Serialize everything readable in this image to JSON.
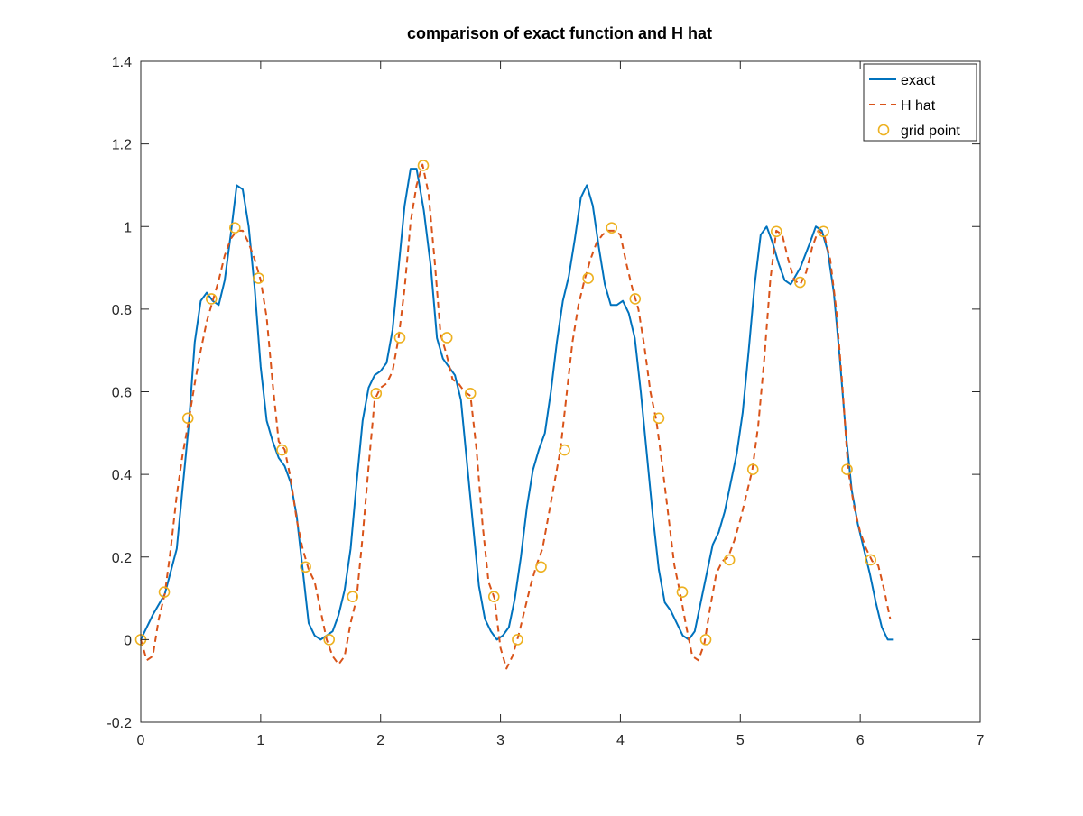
{
  "chart_data": {
    "type": "line",
    "title": "comparison of exact function and H hat",
    "xlabel": "",
    "ylabel": "",
    "xlim": [
      0,
      7
    ],
    "ylim": [
      -0.2,
      1.4
    ],
    "xticks": [
      0,
      1,
      2,
      3,
      4,
      5,
      6,
      7
    ],
    "yticks": [
      -0.2,
      0,
      0.2,
      0.4,
      0.6,
      0.8,
      1,
      1.2,
      1.4
    ],
    "xtick_labels": [
      "0",
      "1",
      "2",
      "3",
      "4",
      "5",
      "6",
      "7"
    ],
    "ytick_labels": [
      "-0.2",
      "0",
      "0.2",
      "0.4",
      "0.6",
      "0.8",
      "1",
      "1.2",
      "1.4"
    ],
    "grid": false,
    "legend_position": "top-right",
    "series": [
      {
        "name": "exact",
        "style": "solid",
        "color": "#0072BD",
        "x": [
          0,
          0.1,
          0.2,
          0.3,
          0.4,
          0.45,
          0.5,
          0.55,
          0.6,
          0.65,
          0.7,
          0.75,
          0.8,
          0.85,
          0.9,
          0.95,
          1.0,
          1.05,
          1.1,
          1.15,
          1.2,
          1.25,
          1.3,
          1.35,
          1.4,
          1.45,
          1.5,
          1.55,
          1.6,
          1.65,
          1.7,
          1.75,
          1.8,
          1.85,
          1.9,
          1.95,
          2.0,
          2.05,
          2.1,
          2.15,
          2.2,
          2.25,
          2.3,
          2.36,
          2.42,
          2.47,
          2.52,
          2.57,
          2.62,
          2.67,
          2.72,
          2.77,
          2.82,
          2.87,
          2.92,
          2.97,
          3.02,
          3.07,
          3.12,
          3.17,
          3.22,
          3.27,
          3.32,
          3.37,
          3.42,
          3.47,
          3.52,
          3.57,
          3.62,
          3.67,
          3.72,
          3.77,
          3.82,
          3.87,
          3.92,
          3.97,
          4.02,
          4.07,
          4.12,
          4.17,
          4.22,
          4.27,
          4.32,
          4.37,
          4.42,
          4.47,
          4.52,
          4.57,
          4.62,
          4.67,
          4.72,
          4.77,
          4.82,
          4.87,
          4.92,
          4.97,
          5.02,
          5.07,
          5.12,
          5.17,
          5.22,
          5.27,
          5.32,
          5.37,
          5.42,
          5.5,
          5.58,
          5.63,
          5.68,
          5.73,
          5.78,
          5.83,
          5.88,
          5.93,
          5.98,
          6.03,
          6.08,
          6.13,
          6.18,
          6.23,
          6.28
        ],
        "y": [
          0,
          0.06,
          0.11,
          0.22,
          0.52,
          0.72,
          0.82,
          0.84,
          0.82,
          0.81,
          0.87,
          0.98,
          1.1,
          1.09,
          1.0,
          0.85,
          0.66,
          0.53,
          0.48,
          0.44,
          0.42,
          0.38,
          0.3,
          0.17,
          0.04,
          0.01,
          0.0,
          0.01,
          0.02,
          0.06,
          0.12,
          0.22,
          0.38,
          0.53,
          0.61,
          0.64,
          0.65,
          0.67,
          0.75,
          0.9,
          1.05,
          1.14,
          1.14,
          1.04,
          0.9,
          0.73,
          0.68,
          0.66,
          0.64,
          0.58,
          0.43,
          0.28,
          0.13,
          0.05,
          0.02,
          0.0,
          0.01,
          0.03,
          0.1,
          0.2,
          0.32,
          0.41,
          0.46,
          0.5,
          0.6,
          0.72,
          0.82,
          0.88,
          0.97,
          1.07,
          1.1,
          1.05,
          0.95,
          0.86,
          0.81,
          0.81,
          0.82,
          0.79,
          0.73,
          0.6,
          0.45,
          0.3,
          0.17,
          0.09,
          0.07,
          0.04,
          0.01,
          0.0,
          0.02,
          0.09,
          0.16,
          0.23,
          0.26,
          0.31,
          0.38,
          0.45,
          0.55,
          0.7,
          0.86,
          0.98,
          1.0,
          0.96,
          0.91,
          0.87,
          0.86,
          0.9,
          0.96,
          1.0,
          0.99,
          0.94,
          0.84,
          0.68,
          0.5,
          0.36,
          0.28,
          0.22,
          0.16,
          0.09,
          0.03,
          0.0,
          0.0
        ]
      },
      {
        "name": "H hat",
        "style": "dashed",
        "color": "#D95319",
        "x": [
          0,
          0.05,
          0.1,
          0.15,
          0.2,
          0.25,
          0.3,
          0.35,
          0.4,
          0.45,
          0.5,
          0.55,
          0.6,
          0.65,
          0.7,
          0.75,
          0.8,
          0.85,
          0.9,
          0.95,
          1.0,
          1.05,
          1.1,
          1.15,
          1.2,
          1.25,
          1.3,
          1.35,
          1.4,
          1.45,
          1.5,
          1.55,
          1.6,
          1.65,
          1.7,
          1.75,
          1.8,
          1.85,
          1.9,
          1.95,
          2.0,
          2.05,
          2.1,
          2.15,
          2.2,
          2.25,
          2.3,
          2.35,
          2.4,
          2.45,
          2.5,
          2.55,
          2.6,
          2.65,
          2.7,
          2.75,
          2.8,
          2.85,
          2.9,
          2.95,
          3.0,
          3.05,
          3.1,
          3.15,
          3.2,
          3.25,
          3.3,
          3.35,
          3.4,
          3.45,
          3.5,
          3.55,
          3.6,
          3.65,
          3.7,
          3.75,
          3.8,
          3.85,
          3.9,
          3.95,
          4.0,
          4.05,
          4.1,
          4.15,
          4.2,
          4.25,
          4.3,
          4.35,
          4.4,
          4.45,
          4.5,
          4.55,
          4.6,
          4.65,
          4.7,
          4.75,
          4.8,
          4.85,
          4.9,
          4.95,
          5.0,
          5.05,
          5.1,
          5.15,
          5.2,
          5.25,
          5.3,
          5.35,
          5.4,
          5.45,
          5.5,
          5.55,
          5.6,
          5.65,
          5.7,
          5.75,
          5.8,
          5.85,
          5.9,
          5.95,
          6.0,
          6.05,
          6.1,
          6.15,
          6.2,
          6.25
        ],
        "y": [
          0,
          -0.05,
          -0.04,
          0.05,
          0.11,
          0.22,
          0.35,
          0.45,
          0.53,
          0.62,
          0.7,
          0.77,
          0.82,
          0.87,
          0.93,
          0.97,
          0.99,
          0.99,
          0.96,
          0.92,
          0.87,
          0.78,
          0.62,
          0.48,
          0.46,
          0.39,
          0.29,
          0.22,
          0.17,
          0.14,
          0.07,
          0.0,
          -0.04,
          -0.06,
          -0.04,
          0.04,
          0.1,
          0.25,
          0.42,
          0.58,
          0.61,
          0.62,
          0.65,
          0.73,
          0.85,
          1.01,
          1.1,
          1.15,
          1.08,
          0.92,
          0.74,
          0.69,
          0.63,
          0.62,
          0.6,
          0.59,
          0.46,
          0.28,
          0.14,
          0.1,
          -0.02,
          -0.07,
          -0.04,
          0.01,
          0.07,
          0.13,
          0.18,
          0.22,
          0.3,
          0.38,
          0.46,
          0.59,
          0.72,
          0.81,
          0.87,
          0.92,
          0.96,
          0.98,
          0.99,
          0.99,
          0.98,
          0.91,
          0.85,
          0.8,
          0.71,
          0.6,
          0.53,
          0.42,
          0.3,
          0.18,
          0.11,
          0.03,
          -0.04,
          -0.05,
          -0.01,
          0.08,
          0.16,
          0.19,
          0.2,
          0.24,
          0.29,
          0.35,
          0.41,
          0.52,
          0.68,
          0.87,
          0.99,
          0.98,
          0.92,
          0.87,
          0.86,
          0.89,
          0.95,
          0.99,
          0.98,
          0.92,
          0.8,
          0.62,
          0.41,
          0.32,
          0.26,
          0.22,
          0.19,
          0.18,
          0.12,
          0.05
        ]
      },
      {
        "name": "grid point",
        "style": "markers",
        "marker": "circle",
        "color": "#EDB120",
        "x": [
          0,
          0.196,
          0.393,
          0.589,
          0.785,
          0.982,
          1.178,
          1.374,
          1.571,
          1.767,
          1.963,
          2.16,
          2.356,
          2.553,
          2.749,
          2.945,
          3.142,
          3.338,
          3.534,
          3.731,
          3.927,
          4.123,
          4.32,
          4.516,
          4.712,
          4.909,
          5.105,
          5.301,
          5.498,
          5.694,
          5.89,
          6.087
        ],
        "y": [
          0,
          0.115,
          0.536,
          0.825,
          0.997,
          0.875,
          0.459,
          0.176,
          0.0,
          0.104,
          0.596,
          0.731,
          1.148,
          0.731,
          0.596,
          0.104,
          0.0,
          0.176,
          0.459,
          0.875,
          0.997,
          0.825,
          0.536,
          0.115,
          0.0,
          0.193,
          0.412,
          0.988,
          0.865,
          0.988,
          0.412,
          0.193
        ]
      }
    ]
  }
}
